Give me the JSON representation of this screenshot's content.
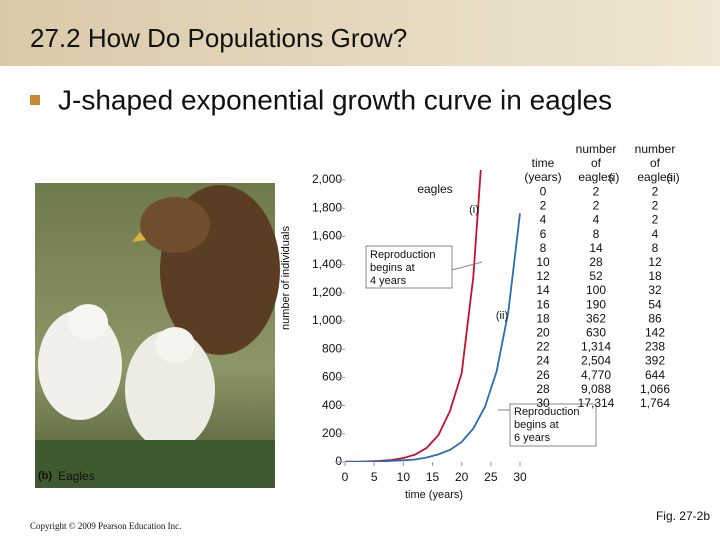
{
  "header": {
    "title": "27.2 How Do Populations Grow?"
  },
  "bullet": "J-shaped exponential growth curve in eagles",
  "photo_caption": {
    "tag": "(b)",
    "label": "Eagles"
  },
  "copyright": "Copyright © 2009 Pearson Education Inc.",
  "figure_ref": "Fig. 27-2b",
  "table": {
    "time_header": "time (years)",
    "series_header_prefix": "number of eagles"
  },
  "chart_data": {
    "type": "line",
    "title": "eagles",
    "x_label": "time (years)",
    "y_label": "number of individuals",
    "x": [
      0,
      2,
      4,
      6,
      8,
      10,
      12,
      14,
      16,
      18,
      20,
      22,
      24,
      26,
      28,
      30
    ],
    "series": [
      {
        "name": "(i)",
        "color": "#c8102e",
        "values": [
          2,
          2,
          4,
          8,
          14,
          28,
          52,
          100,
          190,
          362,
          630,
          1314,
          2504,
          4770,
          9088,
          17314
        ],
        "value_labels": [
          "2",
          "2",
          "4",
          "8",
          "14",
          "28",
          "52",
          "100",
          "190",
          "362",
          "630",
          "1,314",
          "2,504",
          "4,770",
          "9,088",
          "17,314"
        ]
      },
      {
        "name": "(ii)",
        "color": "#2a6db5",
        "values": [
          2,
          2,
          2,
          4,
          8,
          12,
          18,
          32,
          54,
          86,
          142,
          238,
          392,
          644,
          1066,
          1764
        ],
        "value_labels": [
          "2",
          "2",
          "2",
          "4",
          "8",
          "12",
          "18",
          "32",
          "54",
          "86",
          "142",
          "238",
          "392",
          "644",
          "1,066",
          "1,764"
        ]
      }
    ],
    "annotations": [
      "Reproduction begins at 4 years",
      "Reproduction begins at 6 years"
    ],
    "xlim": [
      0,
      30
    ],
    "xticks": [
      0,
      5,
      10,
      15,
      20,
      25,
      30
    ],
    "ylim": [
      0,
      2000
    ],
    "yticks": [
      0,
      200,
      400,
      600,
      800,
      {
        "value": 1000,
        "label": "1,000"
      },
      {
        "value": 1200,
        "label": "1,200"
      },
      {
        "value": 1400,
        "label": "1,400"
      },
      {
        "value": 1600,
        "label": "1,600"
      },
      {
        "value": 1800,
        "label": "1,800"
      },
      {
        "value": 2000,
        "label": "2,000"
      }
    ]
  }
}
